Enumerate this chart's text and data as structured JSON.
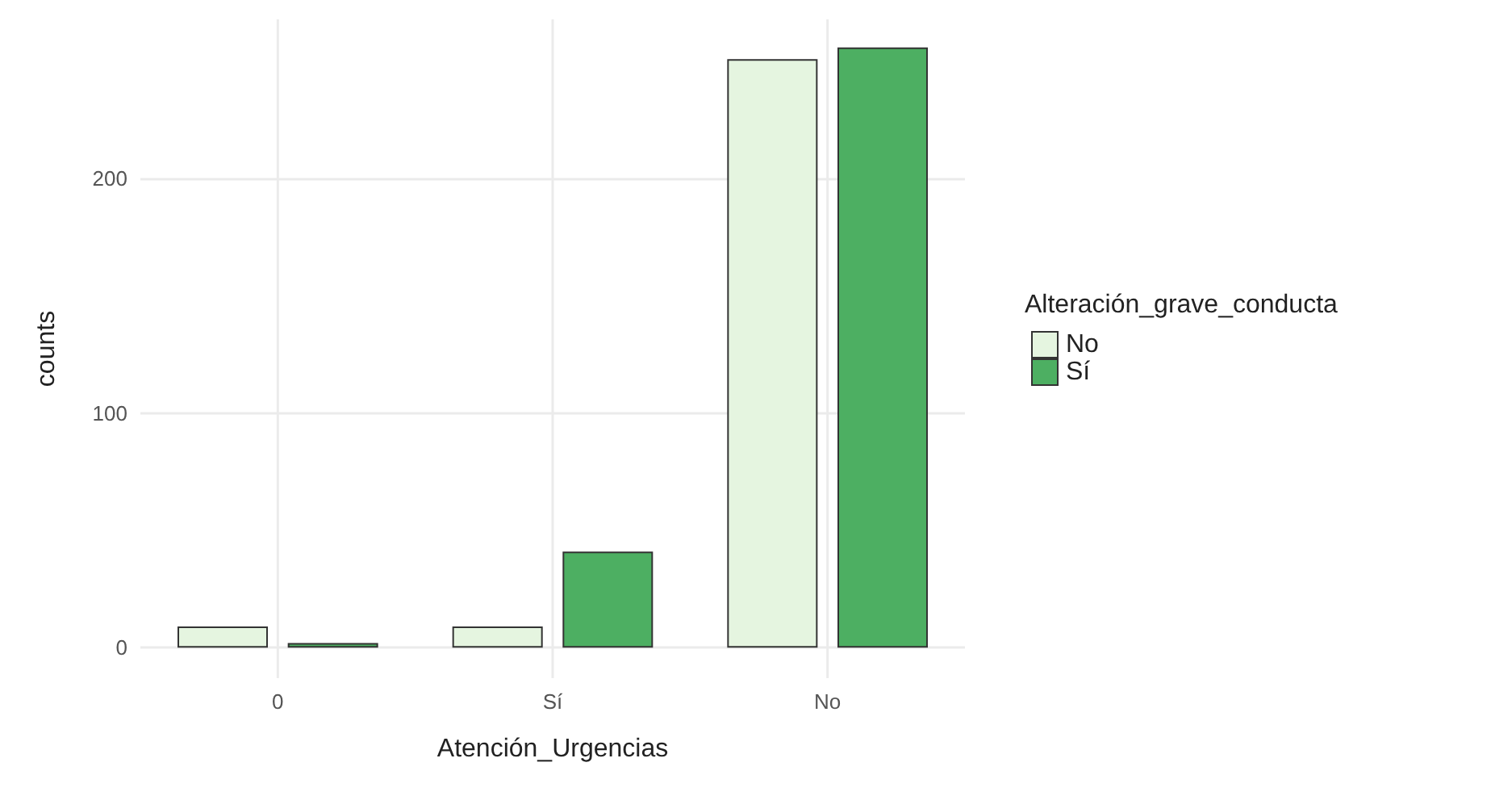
{
  "chart_data": {
    "type": "bar",
    "xlabel": "Atención_Urgencias",
    "ylabel": "counts",
    "legend_title": "Alteración_grave_conducta",
    "categories": [
      "0",
      "Sí",
      "No"
    ],
    "series": [
      {
        "name": "No",
        "color": "#e5f5e0",
        "values": [
          9,
          9,
          251
        ]
      },
      {
        "name": "Sí",
        "color": "#4daf62",
        "values": [
          2,
          41,
          256
        ]
      }
    ],
    "ylim": [
      -13,
      268
    ],
    "yticks": [
      0,
      100,
      200
    ],
    "grid": true,
    "legend": "right"
  }
}
